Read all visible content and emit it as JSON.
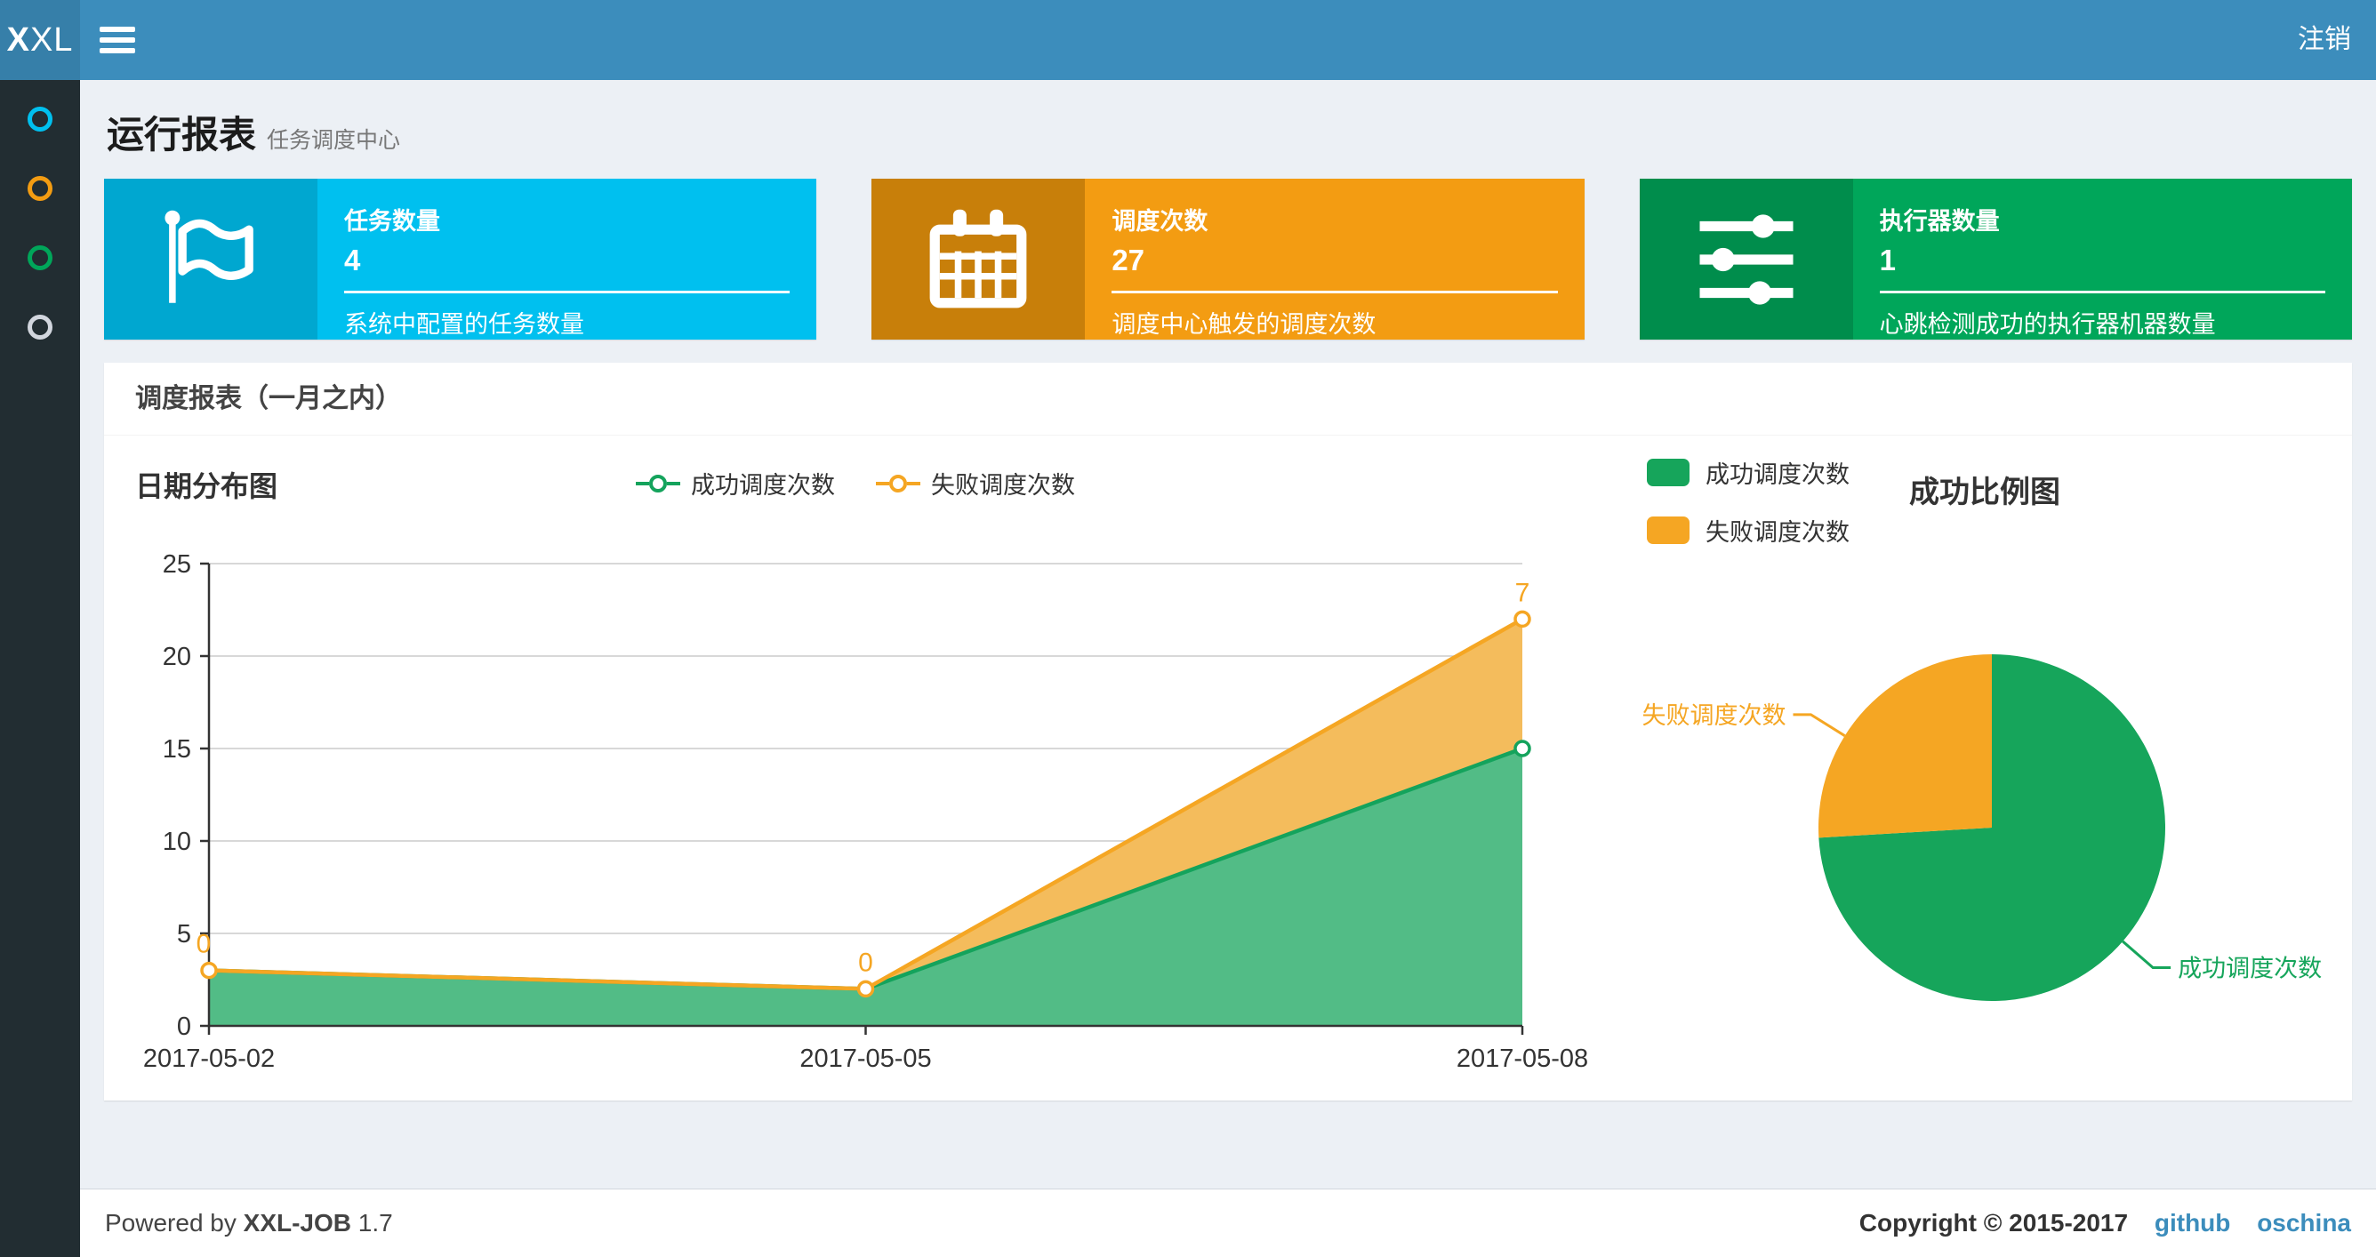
{
  "navbar": {
    "logo_bold": "X",
    "logo_rest": "XL",
    "logout_label": "注销",
    "bar_color": "#3c8dbc",
    "logo_bg": "#367fa9"
  },
  "sidebar": {
    "bg": "#222d32",
    "items": [
      {
        "name": "menu-dot-aqua",
        "color": "#00c0ef"
      },
      {
        "name": "menu-dot-orange",
        "color": "#f39c12"
      },
      {
        "name": "menu-dot-green",
        "color": "#00a65a"
      },
      {
        "name": "menu-dot-white",
        "color": "#d2d6de"
      }
    ]
  },
  "page_header": {
    "title": "运行报表",
    "subtitle": "任务调度中心"
  },
  "stat_boxes": [
    {
      "label": "任务数量",
      "value": "4",
      "desc": "系统中配置的任务数量",
      "color": "#00c0ef",
      "icon_bg": "#00a7d0",
      "icon": "flag-icon"
    },
    {
      "label": "调度次数",
      "value": "27",
      "desc": "调度中心触发的调度次数",
      "color": "#f39c12",
      "icon_bg": "#c87f0a",
      "icon": "calendar-icon"
    },
    {
      "label": "执行器数量",
      "value": "1",
      "desc": "心跳检测成功的执行器机器数量",
      "color": "#00a65a",
      "icon_bg": "#008d4c",
      "icon": "sliders-icon"
    }
  ],
  "panel": {
    "title": "调度报表（一月之内）"
  },
  "charts": {
    "line": {
      "title": "日期分布图"
    },
    "pie": {
      "title": "成功比例图"
    }
  },
  "chart_data": [
    {
      "type": "area",
      "title": "日期分布图",
      "categories": [
        "2017-05-02",
        "2017-05-05",
        "2017-05-08"
      ],
      "series": [
        {
          "name": "成功调度次数",
          "values": [
            3,
            2,
            15
          ],
          "color": "#14a35c",
          "fill": "#52bc86",
          "stacked": false
        },
        {
          "name": "失败调度次数",
          "values": [
            0,
            0,
            7
          ],
          "color": "#f5a623",
          "fill": "#f4bc5c",
          "stacked": true,
          "point_labels": [
            "0",
            "0",
            "7"
          ]
        }
      ],
      "ylim": [
        0,
        25
      ],
      "ytick_step": 5,
      "grid": true,
      "legend_position": "top-center",
      "axis_color": "#333333",
      "grid_color": "#cccccc"
    },
    {
      "type": "pie",
      "title": "成功比例图",
      "labels": [
        "成功调度次数",
        "失败调度次数"
      ],
      "values": [
        20,
        7
      ],
      "colors": [
        "#16a55b",
        "#f5a623"
      ],
      "legend_position": "top-left"
    }
  ],
  "footer": {
    "powered_prefix": "Powered by",
    "product": "XXL-JOB",
    "version": "1.7",
    "copyright": "Copyright © 2015-2017",
    "links": [
      "github",
      "oschina"
    ]
  }
}
